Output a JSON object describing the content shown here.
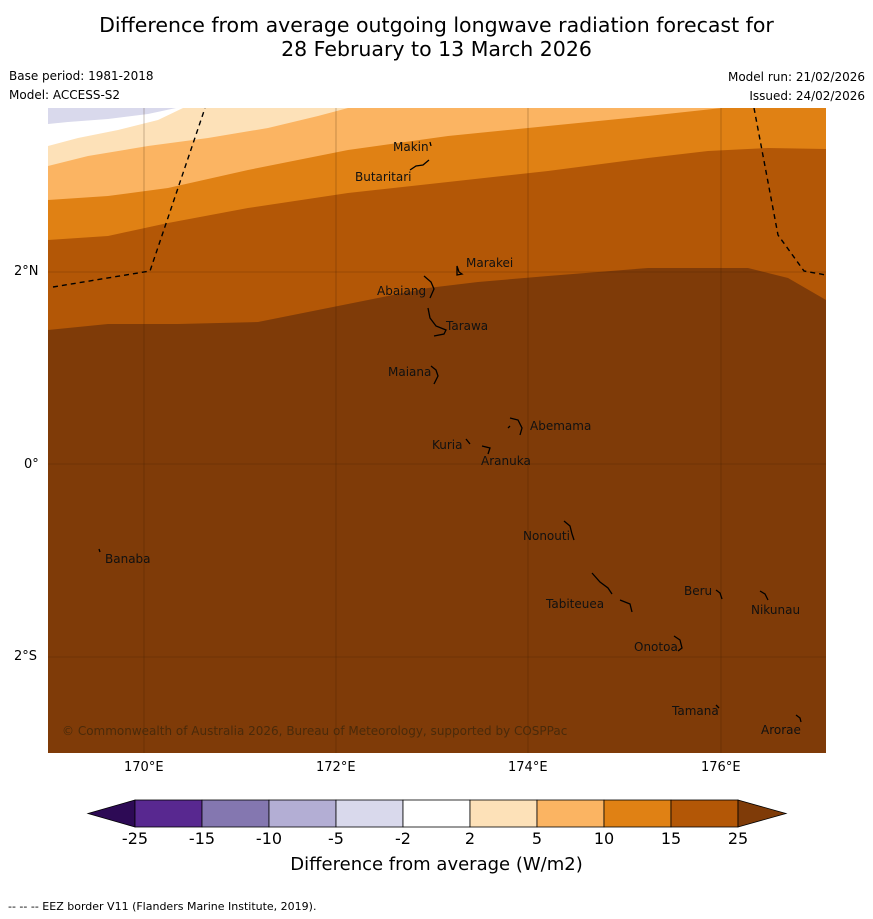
{
  "title": {
    "line1": "Difference from average outgoing longwave radiation forecast for",
    "line2": "28 February to 13 March 2026"
  },
  "meta": {
    "base_period": "Base period: 1981-2018",
    "model": "Model: ACCESS-S2",
    "model_run": "Model run: 21/02/2026",
    "issued": "Issued: 24/02/2026"
  },
  "map": {
    "lat_labels": [
      "2°N",
      "0°",
      "2°S"
    ],
    "lon_labels": [
      "170°E",
      "172°E",
      "174°E",
      "176°E"
    ],
    "places": [
      "Makin",
      "Butaritari",
      "Marakei",
      "Abaiang",
      "Tarawa",
      "Maiana",
      "Abemama",
      "Kuria",
      "Aranuka",
      "Nonouti",
      "Banaba",
      "Beru",
      "Nikunau",
      "Tabiteuea",
      "Onotoa",
      "Tamana",
      "Arorae"
    ],
    "copyright": "© Commonwealth of Australia 2026, Bureau of Meteorology, supported by COSPPac"
  },
  "colorbar": {
    "title": "Difference from average (W/m2)",
    "ticks": [
      "-25",
      "-15",
      "-10",
      "-5",
      "-2",
      "2",
      "5",
      "10",
      "15",
      "25"
    ],
    "colors": [
      "#2d0a55",
      "#582890",
      "#8477b0",
      "#b3aed4",
      "#d9d9ec",
      "#ffffff",
      "#fde1b8",
      "#fbb462",
      "#e08114",
      "#b35706",
      "#7f3b08"
    ]
  },
  "footnote": "--  --  -- EEZ border V11 (Flanders Marine Institute, 2019)."
}
